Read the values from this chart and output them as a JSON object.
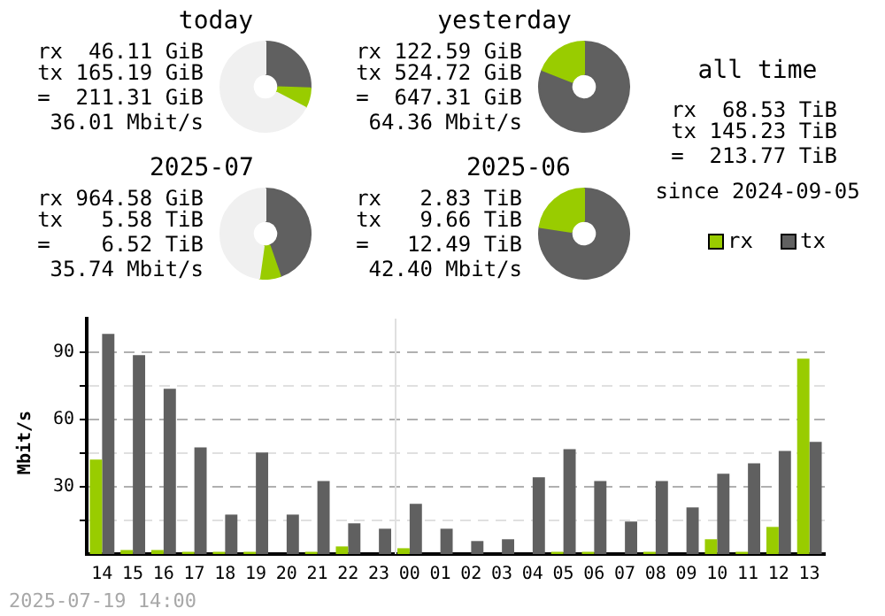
{
  "chart_data": [
    {
      "type": "donut",
      "title": "today",
      "categories": [
        null,
        null,
        null
      ],
      "values": [
        25.52,
        7.12,
        67.36
      ],
      "colors": [
        "#606060",
        "#99cc00",
        "#f0f0f0"
      ],
      "annotations": [
        "rx 46.11 GiB",
        "tx 165.19 GiB",
        "= 211.31 GiB",
        "36.01 Mbit/s"
      ]
    },
    {
      "type": "donut",
      "title": "yesterday",
      "categories": [
        null,
        null
      ],
      "values": [
        81.06,
        18.94
      ],
      "colors": [
        "#606060",
        "#99cc00"
      ],
      "annotations": [
        "rx 122.59 GiB",
        "tx 524.72 GiB",
        "= 647.31 GiB",
        "64.36 Mbit/s"
      ]
    },
    {
      "type": "other",
      "title": "all time",
      "annotations": [
        "rx 68.53 TiB",
        "tx 145.23 TiB",
        "= 213.77 TiB",
        "since 2024-09-05"
      ]
    },
    {
      "type": "donut",
      "title": "2025-07",
      "categories": [
        null,
        null,
        null
      ],
      "values": [
        44.68,
        7.54,
        47.78
      ],
      "colors": [
        "#606060",
        "#99cc00",
        "#f0f0f0"
      ],
      "annotations": [
        "rx 964.58 GiB",
        "tx 5.58 TiB",
        "= 6.52 TiB",
        "35.74 Mbit/s"
      ]
    },
    {
      "type": "donut",
      "title": "2025-06",
      "categories": [
        null,
        null
      ],
      "values": [
        77.34,
        22.66
      ],
      "colors": [
        "#606060",
        "#99cc00"
      ],
      "annotations": [
        "rx 2.83 TiB",
        "tx 9.66 TiB",
        "= 12.49 TiB",
        "42.40 Mbit/s"
      ]
    },
    {
      "type": "bar",
      "ylabel": "Mbit/s",
      "categories": [
        "14",
        "15",
        "16",
        "17",
        "18",
        "19",
        "20",
        "21",
        "22",
        "23",
        "00",
        "01",
        "02",
        "03",
        "04",
        "05",
        "06",
        "07",
        "08",
        "09",
        "10",
        "11",
        "12",
        "13"
      ],
      "series": [
        {
          "name": "rx",
          "color": "#99cc00",
          "values": [
            42.1,
            1.8,
            1.8,
            1,
            1,
            1,
            0,
            1,
            3.4,
            0,
            2.6,
            0,
            0,
            0,
            0,
            1,
            1,
            0,
            1,
            0,
            6.6,
            1,
            12.1,
            87.1
          ]
        },
        {
          "name": "tx",
          "color": "#606060",
          "values": [
            98.2,
            88.7,
            73.7,
            47.6,
            17.6,
            45.3,
            17.6,
            32.6,
            13.7,
            11.3,
            22.4,
            11.3,
            5.8,
            6.6,
            34.2,
            46.8,
            32.6,
            14.5,
            32.6,
            20.8,
            35.8,
            40.5,
            46,
            50
          ]
        }
      ],
      "ylim": [
        0,
        105
      ],
      "yticks": [
        {
          "value": 15,
          "label": null
        },
        30,
        {
          "value": 45,
          "label": null
        },
        60,
        {
          "value": 75,
          "label": null
        },
        90
      ],
      "grid": "y",
      "legend": "top right",
      "ref_lines": [
        {
          "axis": "x",
          "value": "00",
          "color": "#e0e0e0"
        }
      ],
      "annotations": [
        "2025-07-19 14:00"
      ]
    }
  ]
}
